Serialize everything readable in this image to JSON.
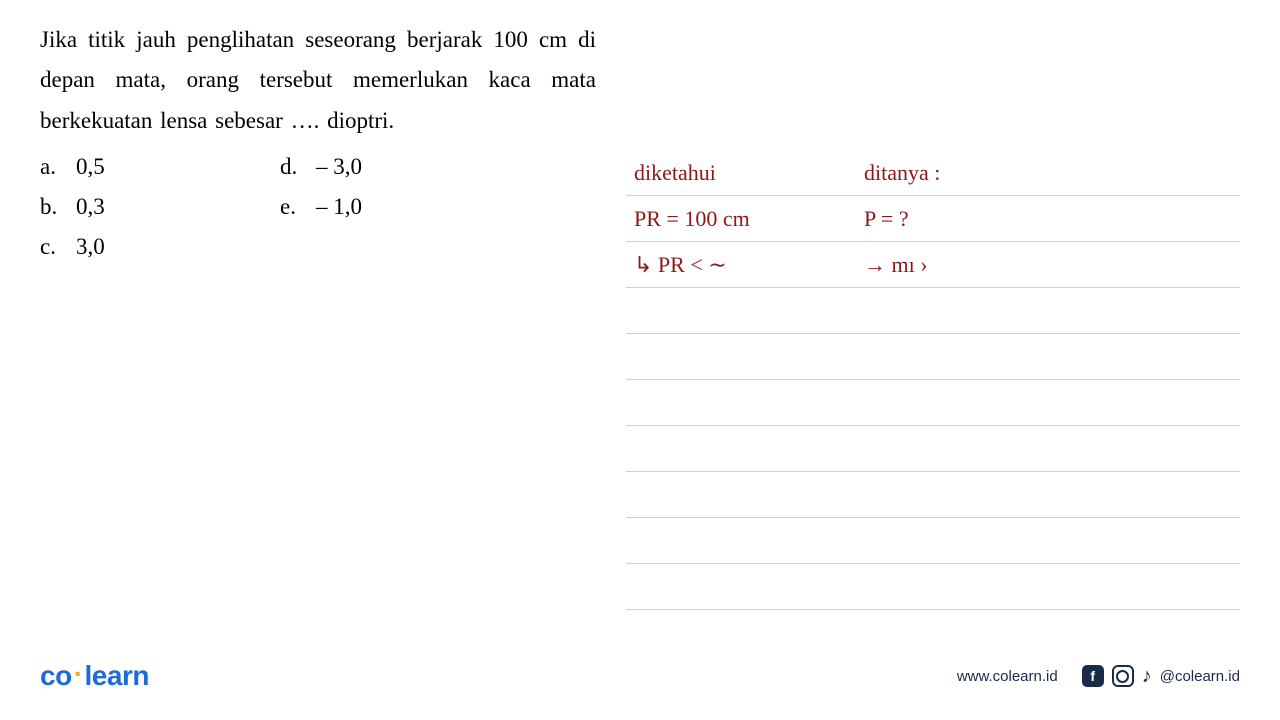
{
  "question": {
    "text": "Jika titik jauh penglihatan seseorang berjarak 100 cm di depan mata, orang tersebut memerlukan kaca mata berkekuatan lensa sebesar …. dioptri.",
    "options": {
      "a": "0,5",
      "b": "0,3",
      "c": "3,0",
      "d": "– 3,0",
      "e": "– 1,0"
    }
  },
  "handwriting": {
    "row1": {
      "left": "diketahui",
      "right": "ditanya :"
    },
    "row2": {
      "left": "PR = 100 cm",
      "right": "P = ?"
    },
    "row3": {
      "left": "↳ PR < ∼",
      "right": "→  mı ›"
    }
  },
  "footer": {
    "logo_co": "co",
    "logo_learn": "learn",
    "website": "www.colearn.id",
    "handle": "@colearn.id"
  },
  "style": {
    "hw_color": "#8b1919",
    "line_color": "#d0d0d0",
    "logo_blue": "#1f6bd6",
    "logo_orange": "#f5a623",
    "footer_dark": "#1a2b4a",
    "bg": "#ffffff",
    "question_fontsize": 23,
    "hw_fontsize": 22
  }
}
